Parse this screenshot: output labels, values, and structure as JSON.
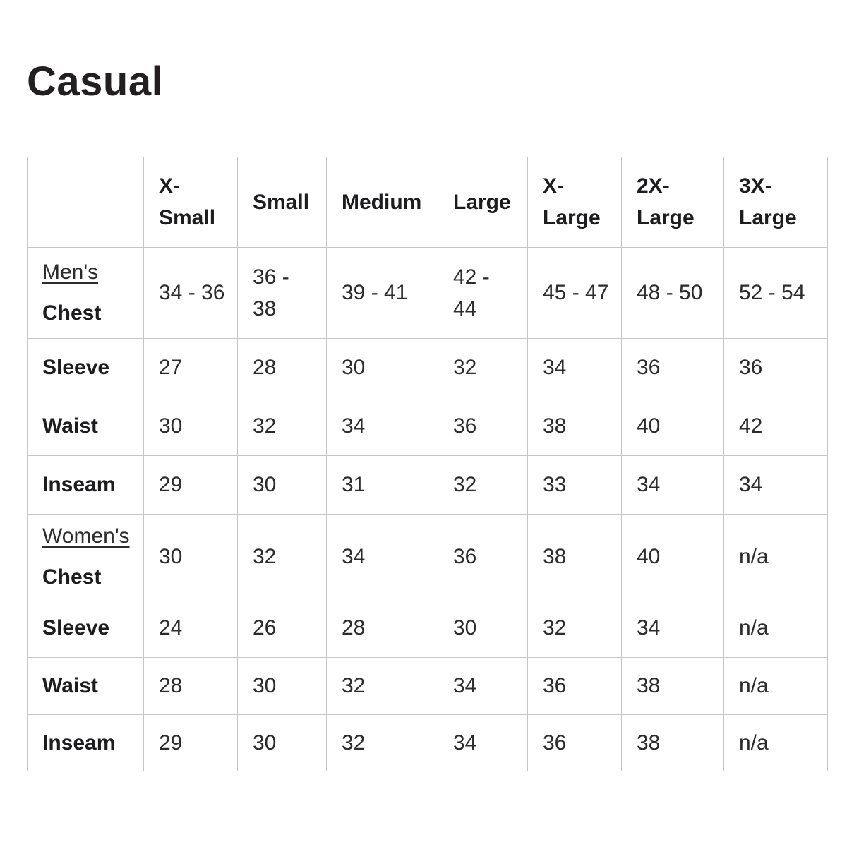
{
  "title": "Casual",
  "table": {
    "columns": [
      "",
      "X-Small",
      "Small",
      "Medium",
      "Large",
      "X-Large",
      "2X-Large",
      "3X-Large"
    ],
    "rows": [
      {
        "section": "Men's",
        "label": "Chest",
        "values": [
          "34 - 36",
          "36 - 38",
          "39 - 41",
          "42 - 44",
          "45 - 47",
          "48 - 50",
          "52 - 54"
        ]
      },
      {
        "label": "Sleeve",
        "values": [
          "27",
          "28",
          "30",
          "32",
          "34",
          "36",
          "36"
        ]
      },
      {
        "label": "Waist",
        "values": [
          "30",
          "32",
          "34",
          "36",
          "38",
          "40",
          "42"
        ]
      },
      {
        "label": "Inseam",
        "values": [
          "29",
          "30",
          "31",
          "32",
          "33",
          "34",
          "34"
        ]
      },
      {
        "section": "Women's",
        "label": "Chest",
        "values": [
          "30",
          "32",
          "34",
          "36",
          "38",
          "40",
          "n/a"
        ]
      },
      {
        "label": "Sleeve",
        "values": [
          "24",
          "26",
          "28",
          "30",
          "32",
          "34",
          "n/a"
        ]
      },
      {
        "label": "Waist",
        "values": [
          "28",
          "30",
          "32",
          "34",
          "36",
          "38",
          "n/a"
        ]
      },
      {
        "label": "Inseam",
        "values": [
          "29",
          "30",
          "32",
          "34",
          "36",
          "38",
          "n/a"
        ]
      }
    ]
  }
}
